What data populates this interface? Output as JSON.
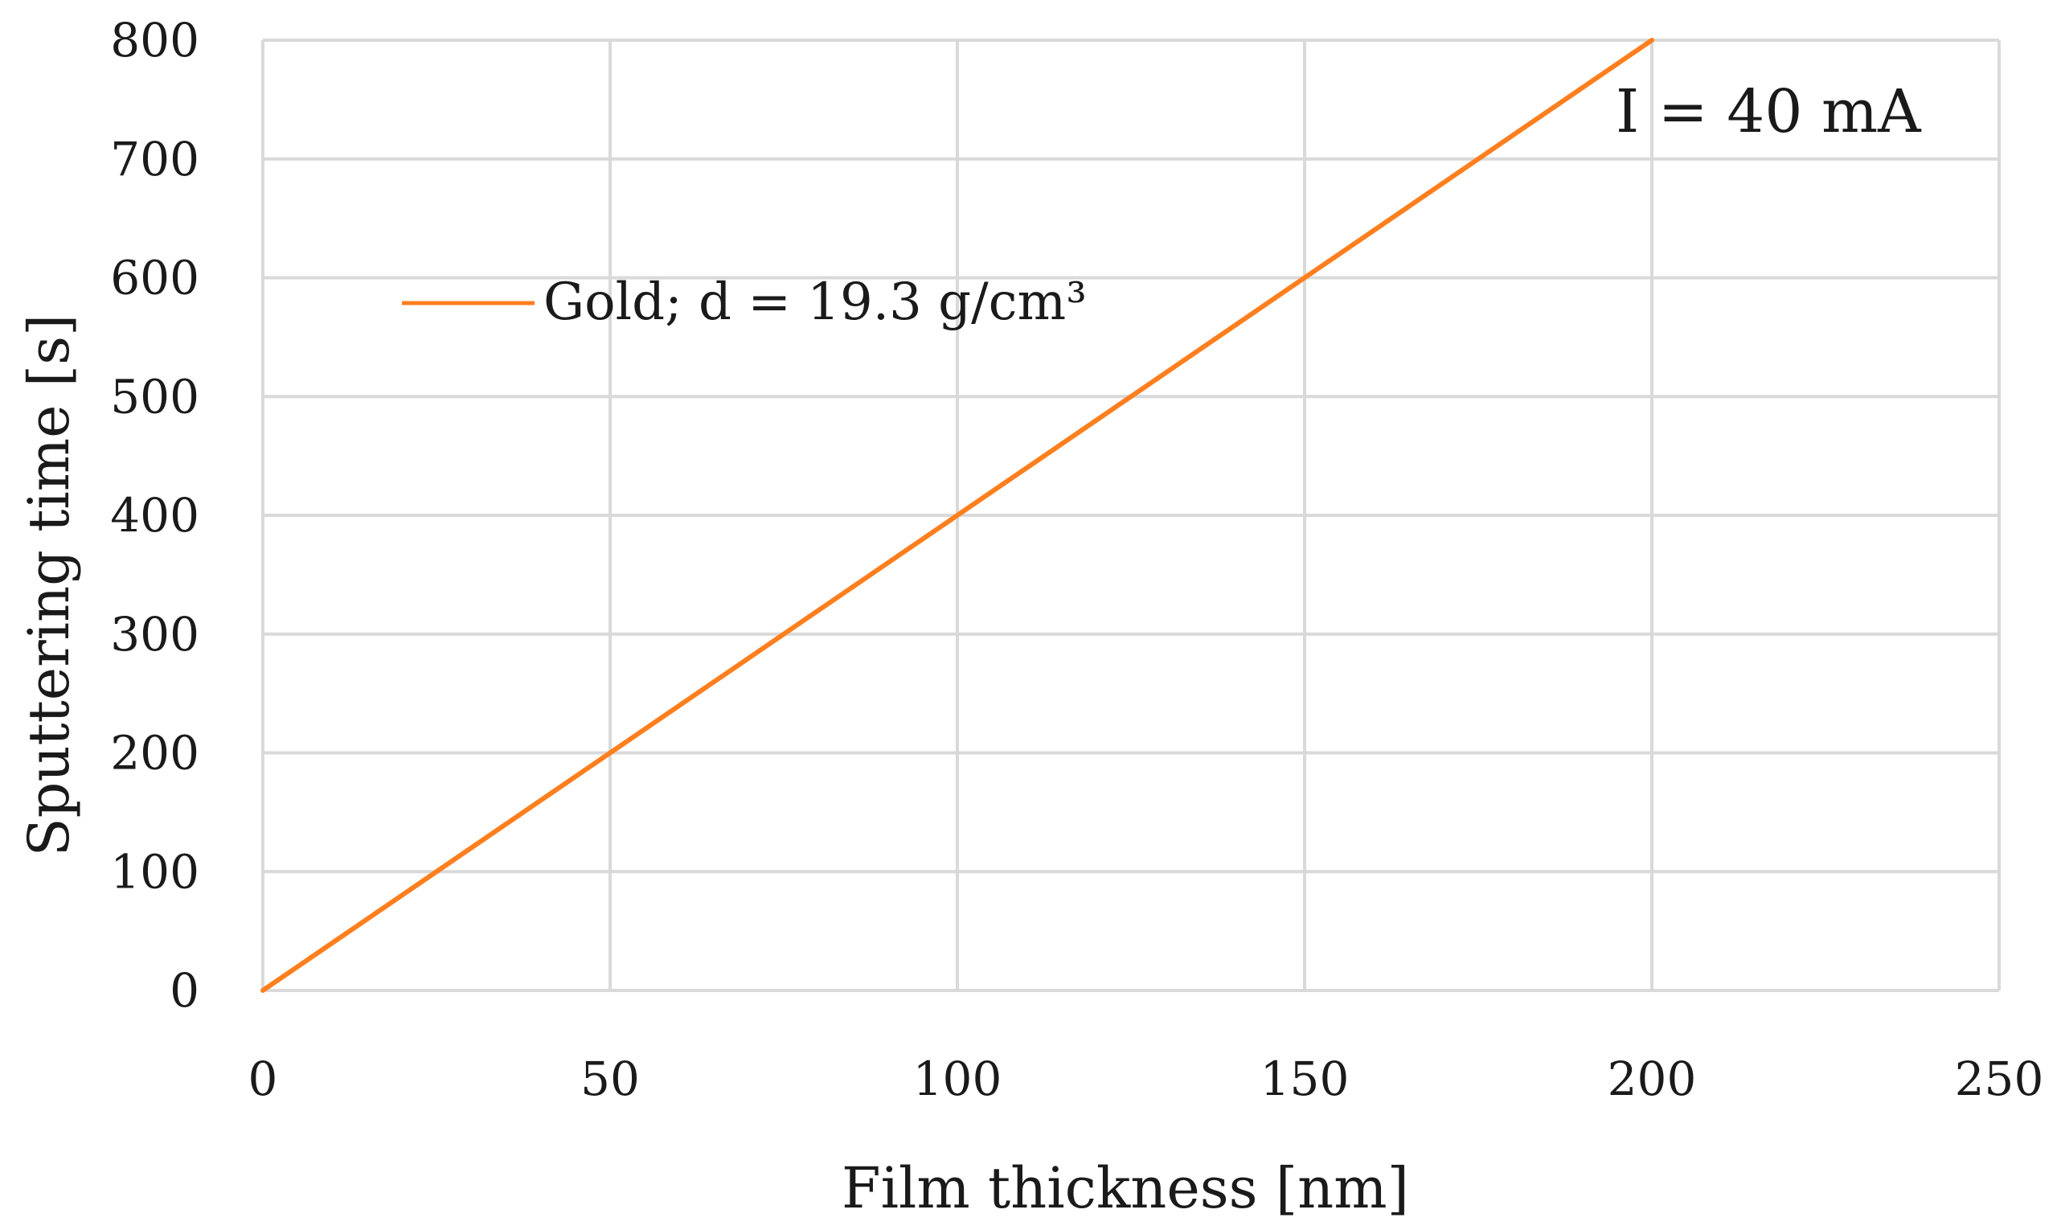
{
  "chart_data": {
    "type": "line",
    "title": "",
    "xlabel": "Film thickness [nm]",
    "ylabel": "Sputtering time [s]",
    "xlim": [
      0,
      250
    ],
    "ylim": [
      0,
      800
    ],
    "x_ticks": [
      0,
      50,
      100,
      150,
      200,
      250
    ],
    "y_ticks": [
      0,
      100,
      200,
      300,
      400,
      500,
      600,
      700,
      800
    ],
    "x_tick_labels": [
      "0",
      "50",
      "100",
      "150",
      "200",
      "250"
    ],
    "y_tick_labels": [
      "0",
      "100",
      "200",
      "300",
      "400",
      "500",
      "600",
      "700",
      "800"
    ],
    "grid": true,
    "legend_position": "upper-left",
    "series": [
      {
        "name": "Gold; d = 19.3 g/cm³",
        "color": "#ff7f1e",
        "x": [
          0,
          200
        ],
        "y": [
          0,
          800
        ]
      }
    ],
    "annotations": [
      {
        "text": "I = 40 mA"
      }
    ]
  }
}
